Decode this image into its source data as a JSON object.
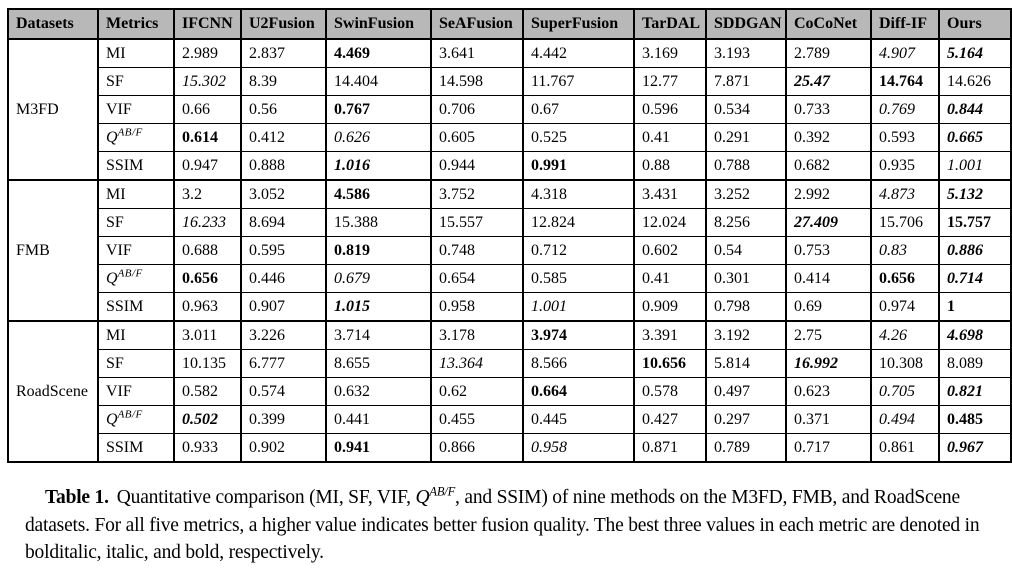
{
  "table": {
    "columns": [
      "Datasets",
      "Metrics",
      "IFCNN",
      "U2Fusion",
      "SwinFusion",
      "SeAFusion",
      "SuperFusion",
      "TarDAL",
      "SDDGAN",
      "CoCoNet",
      "Diff-IF",
      "Ours"
    ],
    "qabf": {
      "base": "Q",
      "sup": "AB/F"
    },
    "style_legend": {
      "n": "normal",
      "b": "bold (3rd best)",
      "i": "italic (2nd best)",
      "bi": "bolditalic (best)"
    },
    "groups": [
      {
        "dataset": "M3FD",
        "rows": [
          {
            "metric": "MI",
            "values": [
              "2.989",
              "2.837",
              "4.469",
              "3.641",
              "4.442",
              "3.169",
              "3.193",
              "2.789",
              "4.907",
              "5.164"
            ],
            "styles": [
              "n",
              "n",
              "b",
              "n",
              "n",
              "n",
              "n",
              "n",
              "i",
              "bi"
            ]
          },
          {
            "metric": "SF",
            "values": [
              "15.302",
              "8.39",
              "14.404",
              "14.598",
              "11.767",
              "12.77",
              "7.871",
              "25.47",
              "14.764",
              "14.626"
            ],
            "styles": [
              "i",
              "n",
              "n",
              "n",
              "n",
              "n",
              "n",
              "bi",
              "b",
              "n"
            ]
          },
          {
            "metric": "VIF",
            "values": [
              "0.66",
              "0.56",
              "0.767",
              "0.706",
              "0.67",
              "0.596",
              "0.534",
              "0.733",
              "0.769",
              "0.844"
            ],
            "styles": [
              "n",
              "n",
              "b",
              "n",
              "n",
              "n",
              "n",
              "n",
              "i",
              "bi"
            ]
          },
          {
            "metric": "QABF",
            "values": [
              "0.614",
              "0.412",
              "0.626",
              "0.605",
              "0.525",
              "0.41",
              "0.291",
              "0.392",
              "0.593",
              "0.665"
            ],
            "styles": [
              "b",
              "n",
              "i",
              "n",
              "n",
              "n",
              "n",
              "n",
              "n",
              "bi"
            ]
          },
          {
            "metric": "SSIM",
            "values": [
              "0.947",
              "0.888",
              "1.016",
              "0.944",
              "0.991",
              "0.88",
              "0.788",
              "0.682",
              "0.935",
              "1.001"
            ],
            "styles": [
              "n",
              "n",
              "bi",
              "n",
              "b",
              "n",
              "n",
              "n",
              "n",
              "i"
            ]
          }
        ]
      },
      {
        "dataset": "FMB",
        "rows": [
          {
            "metric": "MI",
            "values": [
              "3.2",
              "3.052",
              "4.586",
              "3.752",
              "4.318",
              "3.431",
              "3.252",
              "2.992",
              "4.873",
              "5.132"
            ],
            "styles": [
              "n",
              "n",
              "b",
              "n",
              "n",
              "n",
              "n",
              "n",
              "i",
              "bi"
            ]
          },
          {
            "metric": "SF",
            "values": [
              "16.233",
              "8.694",
              "15.388",
              "15.557",
              "12.824",
              "12.024",
              "8.256",
              "27.409",
              "15.706",
              "15.757"
            ],
            "styles": [
              "i",
              "n",
              "n",
              "n",
              "n",
              "n",
              "n",
              "bi",
              "n",
              "b"
            ]
          },
          {
            "metric": "VIF",
            "values": [
              "0.688",
              "0.595",
              "0.819",
              "0.748",
              "0.712",
              "0.602",
              "0.54",
              "0.753",
              "0.83",
              "0.886"
            ],
            "styles": [
              "n",
              "n",
              "b",
              "n",
              "n",
              "n",
              "n",
              "n",
              "i",
              "bi"
            ]
          },
          {
            "metric": "QABF",
            "values": [
              "0.656",
              "0.446",
              "0.679",
              "0.654",
              "0.585",
              "0.41",
              "0.301",
              "0.414",
              "0.656",
              "0.714"
            ],
            "styles": [
              "b",
              "n",
              "i",
              "n",
              "n",
              "n",
              "n",
              "n",
              "b",
              "bi"
            ]
          },
          {
            "metric": "SSIM",
            "values": [
              "0.963",
              "0.907",
              "1.015",
              "0.958",
              "1.001",
              "0.909",
              "0.798",
              "0.69",
              "0.974",
              "1"
            ],
            "styles": [
              "n",
              "n",
              "bi",
              "n",
              "i",
              "n",
              "n",
              "n",
              "n",
              "b"
            ]
          }
        ]
      },
      {
        "dataset": "RoadScene",
        "rows": [
          {
            "metric": "MI",
            "values": [
              "3.011",
              "3.226",
              "3.714",
              "3.178",
              "3.974",
              "3.391",
              "3.192",
              "2.75",
              "4.26",
              "4.698"
            ],
            "styles": [
              "n",
              "n",
              "n",
              "n",
              "b",
              "n",
              "n",
              "n",
              "i",
              "bi"
            ]
          },
          {
            "metric": "SF",
            "values": [
              "10.135",
              "6.777",
              "8.655",
              "13.364",
              "8.566",
              "10.656",
              "5.814",
              "16.992",
              "10.308",
              "8.089"
            ],
            "styles": [
              "n",
              "n",
              "n",
              "i",
              "n",
              "b",
              "n",
              "bi",
              "n",
              "n"
            ]
          },
          {
            "metric": "VIF",
            "values": [
              "0.582",
              "0.574",
              "0.632",
              "0.62",
              "0.664",
              "0.578",
              "0.497",
              "0.623",
              "0.705",
              "0.821"
            ],
            "styles": [
              "n",
              "n",
              "n",
              "n",
              "b",
              "n",
              "n",
              "n",
              "i",
              "bi"
            ]
          },
          {
            "metric": "QABF",
            "values": [
              "0.502",
              "0.399",
              "0.441",
              "0.455",
              "0.445",
              "0.427",
              "0.297",
              "0.371",
              "0.494",
              "0.485"
            ],
            "styles": [
              "bi",
              "n",
              "n",
              "n",
              "n",
              "n",
              "n",
              "n",
              "i",
              "b"
            ]
          },
          {
            "metric": "SSIM",
            "values": [
              "0.933",
              "0.902",
              "0.941",
              "0.866",
              "0.958",
              "0.871",
              "0.789",
              "0.717",
              "0.861",
              "0.967"
            ],
            "styles": [
              "n",
              "n",
              "b",
              "n",
              "i",
              "n",
              "n",
              "n",
              "n",
              "bi"
            ]
          }
        ]
      }
    ]
  },
  "caption": {
    "label": "Table 1.",
    "before_q": "Quantitative comparison (MI, SF, VIF, ",
    "q_base": "Q",
    "q_sup": "AB/F",
    "after_q": ", and SSIM) of nine methods on the M3FD, FMB, and RoadScene datasets. For all five metrics, a higher value indicates better fusion quality. The best three values in each metric are denoted in bolditalic, italic, and bold, respectively."
  }
}
